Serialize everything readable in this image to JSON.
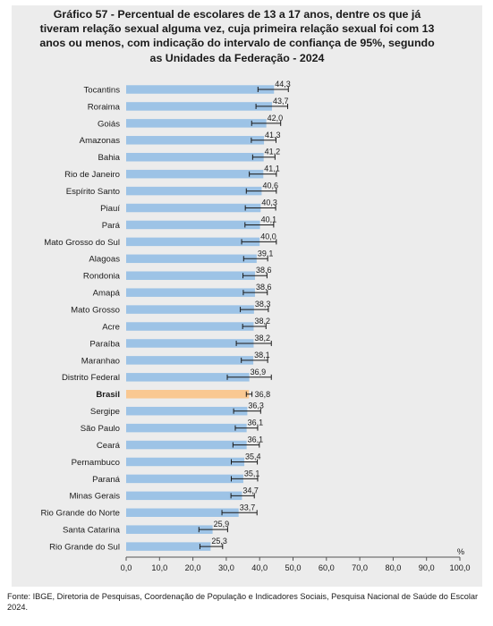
{
  "title": "Gráfico 57 - Percentual de escolares de 13 a 17 anos, dentre os que já tiveram relação sexual alguma vez, cuja primeira relação sexual foi com 13 anos ou menos, com indicação do intervalo de confiança de 95%, segundo as Unidades da Federação - 2024",
  "source": "Fonte: IBGE, Diretoria de Pesquisas, Coordenação de População e Indicadores Sociais, Pesquisa Nacional de Saúde do Escolar 2024.",
  "chart_data": {
    "type": "bar",
    "orientation": "horizontal",
    "title": "Gráfico 57 - Percentual de escolares de 13 a 17 anos, dentre os que já tiveram relação sexual alguma vez, cuja primeira relação sexual foi com 13 anos ou menos, com indicação do intervalo de confiança de 95%, segundo as Unidades da Federação - 2024",
    "unit": "%",
    "xlim": [
      0,
      100
    ],
    "xticks": [
      "0,0",
      "10,0",
      "20,0",
      "30,0",
      "40,0",
      "50,0",
      "60,0",
      "70,0",
      "80,0",
      "90,0",
      "100,0"
    ],
    "grid": false,
    "categories": [
      "Tocantins",
      "Roraima",
      "Goiás",
      "Amazonas",
      "Bahia",
      "Rio de Janeiro",
      "Espírito Santo",
      "Piauí",
      "Pará",
      "Mato Grosso do Sul",
      "Alagoas",
      "Rondonia",
      "Amapá",
      "Mato Grosso",
      "Acre",
      "Paraíba",
      "Maranhao",
      "Distrito Federal",
      "Brasil",
      "Sergipe",
      "São Paulo",
      "Ceará",
      "Pernambuco",
      "Paraná",
      "Minas Gerais",
      "Rio Grande do Norte",
      "Santa Catarina",
      "Rio Grande do Sul"
    ],
    "values": [
      44.3,
      43.7,
      42.0,
      41.3,
      41.2,
      41.1,
      40.6,
      40.3,
      40.1,
      40.0,
      39.1,
      38.6,
      38.6,
      38.3,
      38.2,
      38.2,
      38.1,
      36.9,
      36.8,
      36.3,
      36.1,
      36.1,
      35.4,
      35.1,
      34.7,
      33.7,
      25.9,
      25.3
    ],
    "labels": [
      "44,3",
      "43,7",
      "42,0",
      "41,3",
      "41,2",
      "41,1",
      "40,6",
      "40,3",
      "40,1",
      "40,0",
      "39,1",
      "38,6",
      "38,6",
      "38,3",
      "38,2",
      "38,2",
      "38,1",
      "36,9",
      "36,8",
      "36,3",
      "36,1",
      "36,1",
      "35,4",
      "35,1",
      "34,7",
      "33,7",
      "25,9",
      "25,3"
    ],
    "ci_low": [
      39.5,
      38.9,
      37.6,
      37.5,
      37.9,
      36.9,
      36.0,
      35.7,
      35.6,
      34.6,
      35.2,
      35.0,
      35.1,
      34.2,
      34.9,
      33.0,
      34.5,
      30.3,
      36.0,
      32.2,
      32.7,
      32.0,
      31.5,
      31.5,
      31.4,
      28.7,
      21.8,
      22.1
    ],
    "ci_high": [
      48.6,
      48.4,
      46.3,
      44.9,
      44.6,
      45.0,
      45.0,
      44.8,
      44.2,
      45.0,
      42.4,
      42.2,
      42.3,
      42.6,
      41.9,
      43.5,
      42.4,
      43.5,
      37.7,
      40.3,
      39.4,
      39.9,
      39.3,
      39.4,
      38.4,
      39.2,
      30.4,
      28.9
    ],
    "highlight": "Brasil",
    "colors": {
      "bar": "#9dc3e6",
      "highlight": "#f9c892",
      "error_bar": "#1a1a1a",
      "axis": "#555555"
    }
  }
}
